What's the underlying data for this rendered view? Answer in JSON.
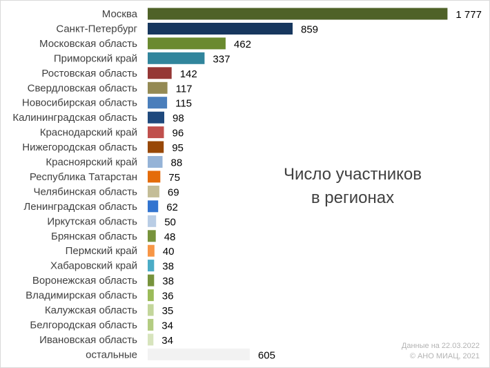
{
  "chart_data": {
    "type": "bar",
    "orientation": "horizontal",
    "categories": [
      "Москва",
      "Санкт-Петербург",
      "Московская область",
      "Приморский край",
      "Ростовская область",
      "Свердловская область",
      "Новосибирская область",
      "Калининградская область",
      "Краснодарский край",
      "Нижегородская область",
      "Красноярский край",
      "Республика Татарстан",
      "Челябинская область",
      "Ленинградская область",
      "Иркутская область",
      "Брянская область",
      "Пермский край",
      "Хабаровский край",
      "Воронежская область",
      "Владимирская область",
      "Калужская область",
      "Белгородская область",
      "Ивановская область",
      "остальные"
    ],
    "values": [
      1777,
      859,
      462,
      337,
      142,
      117,
      115,
      98,
      96,
      95,
      88,
      75,
      69,
      62,
      50,
      48,
      40,
      38,
      38,
      36,
      35,
      34,
      34,
      605
    ],
    "value_labels": [
      "1 777",
      "859",
      "462",
      "337",
      "142",
      "117",
      "115",
      "98",
      "96",
      "95",
      "88",
      "75",
      "69",
      "62",
      "50",
      "48",
      "40",
      "38",
      "38",
      "36",
      "35",
      "34",
      "34",
      "605"
    ],
    "colors": [
      "#4f6228",
      "#17375e",
      "#6a8a2f",
      "#31859c",
      "#953735",
      "#948a54",
      "#4a7ebb",
      "#1f497d",
      "#c0504d",
      "#984807",
      "#95b3d7",
      "#e46c0a",
      "#c4bd97",
      "#3274d0",
      "#b9cde5",
      "#77933c",
      "#f79646",
      "#4bacc6",
      "#77933c",
      "#9bbb59",
      "#c3d69b",
      "#b3cc82",
      "#d7e4bd",
      "#f2f2f2"
    ],
    "title": "",
    "xlabel": "",
    "ylabel": "",
    "xlim": [
      0,
      1800
    ],
    "grid": false,
    "legend": "none"
  },
  "annotation": {
    "line1": "Число участников",
    "line2": "в регионах"
  },
  "credits": {
    "line1": "Данные на 22.03.2022",
    "line2": "© АНО МИАЦ, 2021"
  }
}
